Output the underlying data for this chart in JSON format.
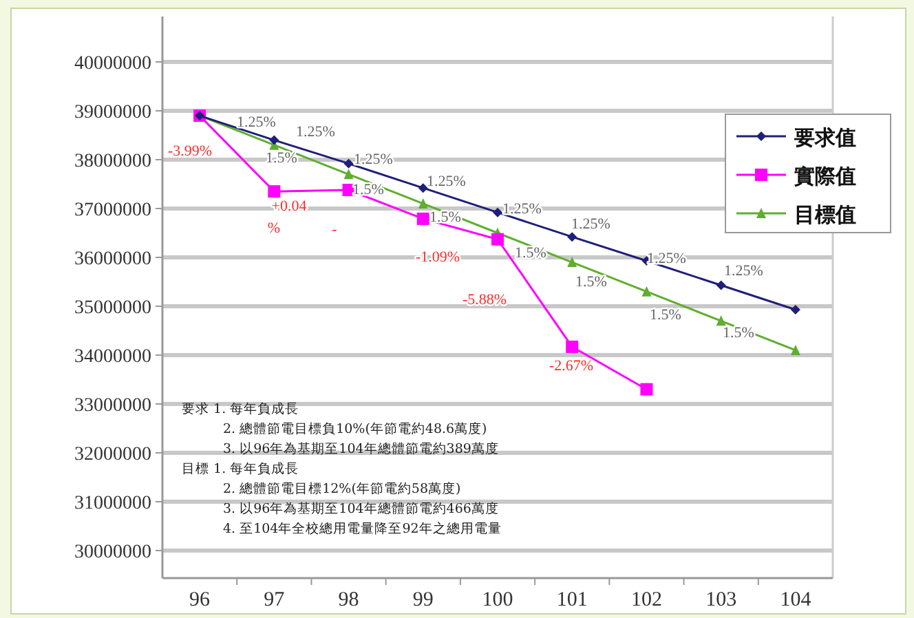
{
  "chart_data": {
    "type": "line",
    "categories": [
      "96",
      "97",
      "98",
      "99",
      "100",
      "101",
      "102",
      "103",
      "104"
    ],
    "series": [
      {
        "name": "要求值",
        "color": "#1f1f7a",
        "marker": "diamond",
        "values": [
          38900000,
          38400000,
          37920000,
          37420000,
          36920000,
          36420000,
          35930000,
          35430000,
          34930000
        ]
      },
      {
        "name": "實際值",
        "color": "#ff00ff",
        "marker": "square",
        "values": [
          38900000,
          37350000,
          37380000,
          36790000,
          36370000,
          34170000,
          33300000,
          null,
          null
        ]
      },
      {
        "name": "目標值",
        "color": "#5fae2e",
        "marker": "triangle",
        "values": [
          38900000,
          38300000,
          37700000,
          37100000,
          36500000,
          35900000,
          35300000,
          34700000,
          34100000
        ]
      }
    ],
    "ylim": [
      30000000,
      40000000
    ],
    "yticks": [
      30000000,
      31000000,
      32000000,
      33000000,
      34000000,
      35000000,
      36000000,
      37000000,
      38000000,
      39000000,
      40000000
    ],
    "grid": "y",
    "legend": "top right",
    "annotations": [
      "1.25%",
      "1.25%",
      "1.25%",
      "1.25%",
      "1.25%",
      "1.25%",
      "1.25%",
      "1.25%",
      "1.5%",
      "1.5%",
      "1.5%",
      "1.5%",
      "1.5%",
      "1.5%",
      "1.5%",
      "-3.99%",
      "+0.04",
      "%",
      "-",
      "-1.09%",
      "-5.88%",
      "-2.67%",
      "要求 1. 每年負成長",
      "2. 總體節電目標負10%(年節電約48.6萬度)",
      "3. 以96年為基期至104年總體節電約389萬度",
      "目標 1. 每年負成長",
      "2. 總體節電目標12%(年節電約58萬度)",
      "3. 以96年為基期至104年總體節電約466萬度",
      "4. 至104年全校總用電量降至92年之總用電量"
    ]
  }
}
